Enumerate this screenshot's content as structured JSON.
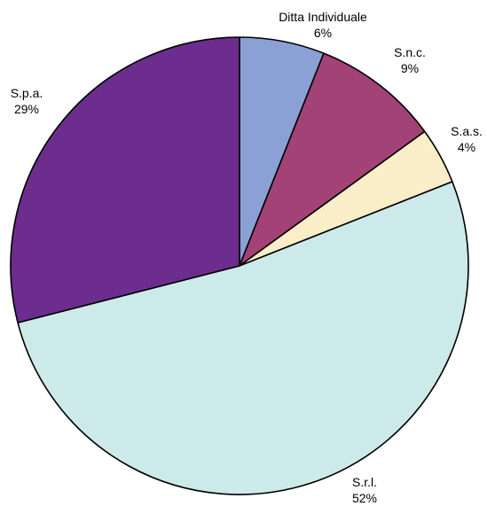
{
  "chart_data": {
    "type": "pie",
    "title": "",
    "slices": [
      {
        "label": "Ditta Individuale",
        "pct_label": "6%",
        "value": 6,
        "color": "#8ba0d4"
      },
      {
        "label": "S.n.c.",
        "pct_label": "9%",
        "value": 9,
        "color": "#a34276"
      },
      {
        "label": "S.a.s.",
        "pct_label": "4%",
        "value": 4,
        "color": "#faeec8"
      },
      {
        "label": "S.r.l.",
        "pct_label": "52%",
        "value": 52,
        "color": "#cdeaea"
      },
      {
        "label": "S.p.a.",
        "pct_label": "29%",
        "value": 29,
        "color": "#6c2d8f"
      }
    ],
    "start_angle_deg": 0,
    "direction": "clockwise",
    "legend": "none"
  }
}
